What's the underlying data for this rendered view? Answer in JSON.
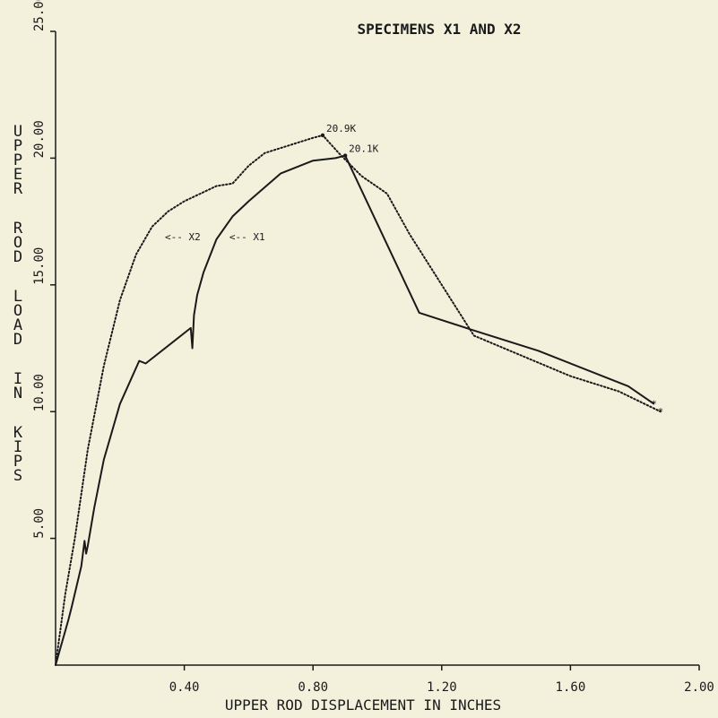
{
  "chart_data": {
    "type": "line",
    "title": "SPECIMENS X1 AND X2",
    "xlabel": "UPPER ROD DISPLACEMENT IN INCHES",
    "ylabel": "UPPER ROD LOAD IN KIPS",
    "xlim": [
      0,
      2.0
    ],
    "ylim": [
      0,
      25
    ],
    "x_ticks": [
      0.4,
      0.8,
      1.2,
      1.6,
      2.0
    ],
    "x_tick_labels": [
      "0.40",
      "0.80",
      "1.20",
      "1.60",
      "2.00"
    ],
    "y_ticks": [
      5,
      10,
      15,
      20,
      25
    ],
    "y_tick_labels": [
      "5.00",
      "10.00",
      "15.00",
      "20.00",
      "25.00"
    ],
    "grid": false,
    "legend": "none",
    "series": [
      {
        "name": "X1",
        "style": "solid",
        "color": "#1a1a1a",
        "x": [
          0.0,
          0.04,
          0.05,
          0.08,
          0.09,
          0.095,
          0.1,
          0.12,
          0.15,
          0.2,
          0.26,
          0.28,
          0.42,
          0.425,
          0.43,
          0.44,
          0.46,
          0.5,
          0.55,
          0.6,
          0.7,
          0.8,
          0.87,
          0.9,
          1.13,
          1.3,
          1.5,
          1.78,
          1.86
        ],
        "y": [
          0.0,
          1.8,
          2.3,
          3.9,
          4.9,
          4.4,
          4.7,
          6.2,
          8.1,
          10.3,
          12.0,
          11.9,
          13.3,
          12.5,
          13.8,
          14.6,
          15.5,
          16.8,
          17.7,
          18.3,
          19.4,
          19.9,
          20.0,
          20.1,
          13.9,
          13.2,
          12.4,
          11.0,
          10.3
        ]
      },
      {
        "name": "X2",
        "style": "dotted",
        "color": "#1a1a1a",
        "x": [
          0.0,
          0.03,
          0.06,
          0.1,
          0.15,
          0.2,
          0.25,
          0.3,
          0.35,
          0.4,
          0.45,
          0.5,
          0.55,
          0.6,
          0.65,
          0.7,
          0.75,
          0.8,
          0.83,
          0.88,
          0.95,
          1.03,
          1.1,
          1.2,
          1.3,
          1.45,
          1.6,
          1.75,
          1.88
        ],
        "y": [
          0.0,
          2.8,
          5.0,
          8.5,
          11.8,
          14.4,
          16.2,
          17.3,
          17.9,
          18.3,
          18.6,
          18.9,
          19.0,
          19.7,
          20.2,
          20.4,
          20.6,
          20.8,
          20.9,
          20.2,
          19.3,
          18.6,
          17.0,
          15.0,
          13.0,
          12.2,
          11.4,
          10.8,
          10.0
        ]
      }
    ],
    "annotations": [
      {
        "text": "20.9K",
        "x": 0.83,
        "y": 20.9
      },
      {
        "text": "20.1K",
        "x": 0.9,
        "y": 20.1
      },
      {
        "text": "<-- X2",
        "x": 0.34,
        "y": 16.9
      },
      {
        "text": "<-- X1",
        "x": 0.54,
        "y": 16.9
      }
    ]
  }
}
